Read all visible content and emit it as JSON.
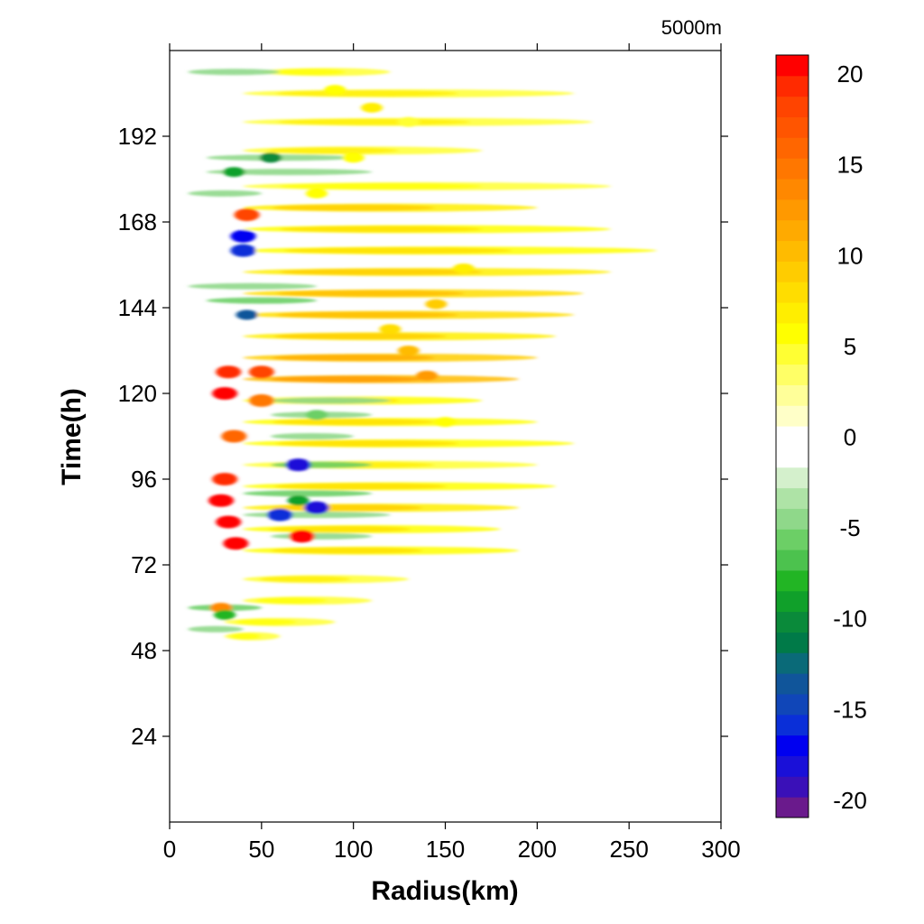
{
  "chart_data": {
    "type": "heatmap",
    "corner_label": "5000m",
    "xlabel": "Radius(km)",
    "ylabel": "Time(h)",
    "xlim": [
      0,
      300
    ],
    "ylim": [
      0,
      216
    ],
    "xticks": [
      "0",
      "50",
      "100",
      "150",
      "200",
      "250",
      "300"
    ],
    "xtick_values": [
      0,
      50,
      100,
      150,
      200,
      250,
      300
    ],
    "yticks": [
      "24",
      "48",
      "72",
      "96",
      "120",
      "144",
      "168",
      "192"
    ],
    "ytick_values": [
      24,
      48,
      72,
      96,
      120,
      144,
      168,
      192
    ],
    "colorbar": {
      "range": [
        -21,
        21
      ],
      "labels": [
        "20",
        "15",
        "10",
        "5",
        "0",
        "-5",
        "-10",
        "-15",
        "-20"
      ],
      "label_values": [
        20,
        15,
        10,
        5,
        0,
        -5,
        -10,
        -15,
        -20
      ],
      "white_band": [
        -2,
        2
      ],
      "colors": [
        "#6a1a8c",
        "#3a10b8",
        "#1a10d8",
        "#0000f0",
        "#0a2fd8",
        "#1046b8",
        "#10559a",
        "#0a6a78",
        "#007a48",
        "#0a8a3a",
        "#10a02a",
        "#22b524",
        "#4cc24e",
        "#6ccf66",
        "#8fd88a",
        "#aee3a6",
        "#d4f0cc",
        "#ffffff",
        "#ffffff",
        "#ffffc8",
        "#ffff99",
        "#ffff66",
        "#ffff33",
        "#ffff00",
        "#ffee00",
        "#ffdd00",
        "#ffcc00",
        "#ffbb00",
        "#ffaa00",
        "#ff9900",
        "#ff8800",
        "#ff7700",
        "#ff6600",
        "#ff5500",
        "#ff4400",
        "#ff2a00",
        "#ff0000"
      ]
    },
    "features": [
      {
        "r": 32,
        "t": 84,
        "v": 21
      },
      {
        "r": 28,
        "t": 90,
        "v": 20
      },
      {
        "r": 36,
        "t": 78,
        "v": 20
      },
      {
        "r": 30,
        "t": 96,
        "v": 19
      },
      {
        "r": 30,
        "t": 120,
        "v": 20
      },
      {
        "r": 32,
        "t": 126,
        "v": 19
      },
      {
        "r": 50,
        "t": 126,
        "v": 18
      },
      {
        "r": 72,
        "t": 80,
        "v": 20
      },
      {
        "r": 42,
        "t": 170,
        "v": 18
      },
      {
        "r": 28,
        "t": 60,
        "v": 14
      },
      {
        "r": 35,
        "t": 108,
        "v": 16
      },
      {
        "r": 50,
        "t": 118,
        "v": 15
      },
      {
        "r": 70,
        "t": 100,
        "v": -18
      },
      {
        "r": 80,
        "t": 88,
        "v": -18
      },
      {
        "r": 60,
        "t": 86,
        "v": -16
      },
      {
        "r": 40,
        "t": 164,
        "v": -17
      },
      {
        "r": 40,
        "t": 160,
        "v": -16
      },
      {
        "r": 42,
        "t": 142,
        "v": -14
      },
      {
        "r": 55,
        "t": 186,
        "v": -10
      },
      {
        "r": 35,
        "t": 182,
        "v": -9
      },
      {
        "r": 30,
        "t": 58,
        "v": -8
      },
      {
        "r": 70,
        "t": 90,
        "v": -9
      },
      {
        "r": 80,
        "t": 114,
        "v": -6
      },
      {
        "r": 140,
        "t": 125,
        "v": 13
      },
      {
        "r": 145,
        "t": 145,
        "v": 9
      },
      {
        "r": 160,
        "t": 155,
        "v": 7
      },
      {
        "r": 130,
        "t": 132,
        "v": 10
      },
      {
        "r": 120,
        "t": 138,
        "v": 8
      },
      {
        "r": 150,
        "t": 112,
        "v": 6
      },
      {
        "r": 110,
        "t": 200,
        "v": 7
      },
      {
        "r": 90,
        "t": 205,
        "v": 6
      },
      {
        "r": 130,
        "t": 196,
        "v": 5
      },
      {
        "r": 80,
        "t": 176,
        "v": 6
      },
      {
        "r": 100,
        "t": 186,
        "v": 6
      }
    ],
    "streaks": [
      {
        "t": 210,
        "r0": 50,
        "r1": 120,
        "v": 4
      },
      {
        "t": 204,
        "r0": 40,
        "r1": 220,
        "v": 5
      },
      {
        "t": 196,
        "r0": 40,
        "r1": 230,
        "v": 5
      },
      {
        "t": 188,
        "r0": 40,
        "r1": 170,
        "v": 5
      },
      {
        "t": 178,
        "r0": 40,
        "r1": 240,
        "v": 4
      },
      {
        "t": 172,
        "r0": 40,
        "r1": 200,
        "v": 7
      },
      {
        "t": 166,
        "r0": 40,
        "r1": 240,
        "v": 6
      },
      {
        "t": 160,
        "r0": 40,
        "r1": 265,
        "v": 6
      },
      {
        "t": 154,
        "r0": 40,
        "r1": 240,
        "v": 7
      },
      {
        "t": 148,
        "r0": 40,
        "r1": 225,
        "v": 8
      },
      {
        "t": 142,
        "r0": 40,
        "r1": 220,
        "v": 8
      },
      {
        "t": 136,
        "r0": 40,
        "r1": 210,
        "v": 7
      },
      {
        "t": 130,
        "r0": 40,
        "r1": 200,
        "v": 9
      },
      {
        "t": 124,
        "r0": 40,
        "r1": 190,
        "v": 10
      },
      {
        "t": 118,
        "r0": 40,
        "r1": 170,
        "v": 6
      },
      {
        "t": 112,
        "r0": 40,
        "r1": 200,
        "v": 6
      },
      {
        "t": 106,
        "r0": 40,
        "r1": 220,
        "v": 6
      },
      {
        "t": 100,
        "r0": 40,
        "r1": 200,
        "v": 5
      },
      {
        "t": 94,
        "r0": 40,
        "r1": 210,
        "v": 6
      },
      {
        "t": 88,
        "r0": 40,
        "r1": 190,
        "v": 7
      },
      {
        "t": 82,
        "r0": 40,
        "r1": 180,
        "v": 6
      },
      {
        "t": 76,
        "r0": 40,
        "r1": 190,
        "v": 6
      },
      {
        "t": 68,
        "r0": 40,
        "r1": 130,
        "v": 5
      },
      {
        "t": 62,
        "r0": 40,
        "r1": 110,
        "v": 4
      },
      {
        "t": 56,
        "r0": 30,
        "r1": 90,
        "v": 4
      },
      {
        "t": 52,
        "r0": 30,
        "r1": 60,
        "v": 4
      }
    ],
    "green_streaks": [
      {
        "t": 186,
        "r0": 20,
        "r1": 100,
        "v": -5
      },
      {
        "t": 182,
        "r0": 20,
        "r1": 110,
        "v": -4
      },
      {
        "t": 176,
        "r0": 10,
        "r1": 50,
        "v": -4
      },
      {
        "t": 150,
        "r0": 10,
        "r1": 80,
        "v": -5
      },
      {
        "t": 146,
        "r0": 20,
        "r1": 80,
        "v": -6
      },
      {
        "t": 118,
        "r0": 55,
        "r1": 120,
        "v": -5
      },
      {
        "t": 114,
        "r0": 55,
        "r1": 110,
        "v": -5
      },
      {
        "t": 108,
        "r0": 55,
        "r1": 100,
        "v": -5
      },
      {
        "t": 100,
        "r0": 55,
        "r1": 110,
        "v": -6
      },
      {
        "t": 92,
        "r0": 40,
        "r1": 110,
        "v": -6
      },
      {
        "t": 86,
        "r0": 40,
        "r1": 120,
        "v": -5
      },
      {
        "t": 80,
        "r0": 55,
        "r1": 110,
        "v": -5
      },
      {
        "t": 60,
        "r0": 10,
        "r1": 50,
        "v": -6
      },
      {
        "t": 54,
        "r0": 10,
        "r1": 40,
        "v": -5
      },
      {
        "t": 210,
        "r0": 10,
        "r1": 60,
        "v": -4
      }
    ]
  }
}
